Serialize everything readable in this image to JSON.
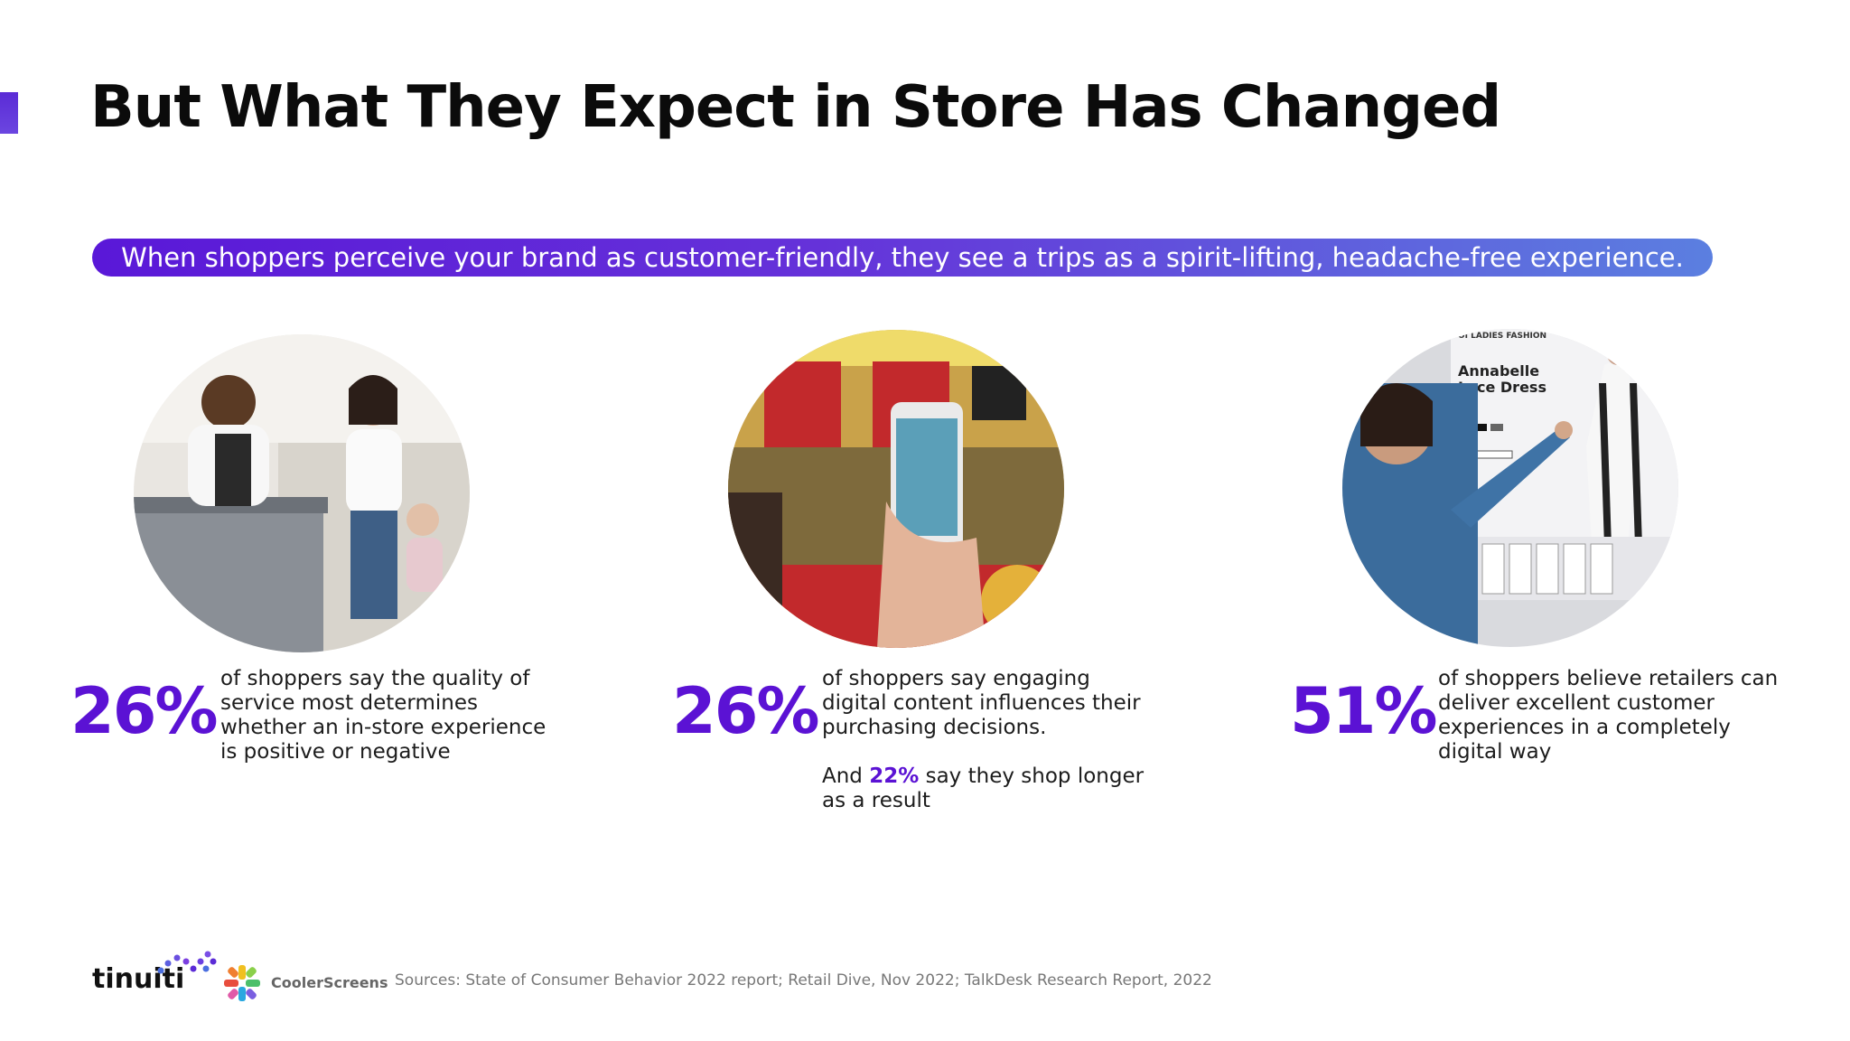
{
  "title": "But What They Expect in Store Has Changed",
  "banner": "When shoppers perceive your brand as customer-friendly, they see a trips as a spirit-lifting, headache-free experience.",
  "stats": [
    {
      "value": "26%",
      "text": "of shoppers say the quality of service most determines whether an in-store experience is positive or negative"
    },
    {
      "value": "26%",
      "text": "of shoppers say engaging digital content influences their purchasing decisions.",
      "extra_prefix": "And",
      "extra_highlight": "22%",
      "extra_suffix": "say they shop longer as a result"
    },
    {
      "value": "51%",
      "text": "of shoppers believe retailers can deliver excellent customer experiences in a completely digital way"
    }
  ],
  "photo3": {
    "header": "OI LADIES FASHION",
    "product_line1": "Annabelle",
    "product_line2": "Lace Dress"
  },
  "footer": {
    "logo_tinuiti": "tinuiti",
    "logo_cooler": "CoolerScreens",
    "sources": "Sources:  State of Consumer Behavior 2022 report; Retail Dive, Nov 2022; TalkDesk Research Report, 2022"
  },
  "colors": {
    "accent": "#5b12d4",
    "banner_start": "#5a18d8",
    "banner_end": "#5b7fe0"
  }
}
